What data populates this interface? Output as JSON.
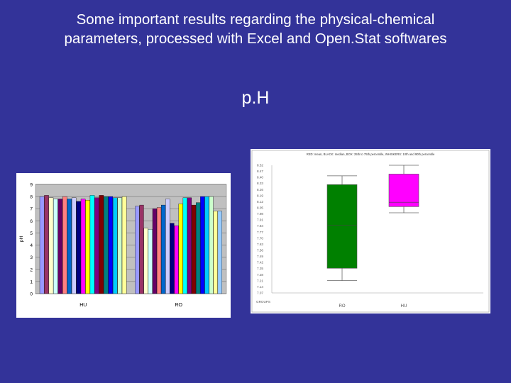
{
  "slide": {
    "title_line1": "Some important results regarding the physical-chemical",
    "title_line2": "parameters, processed with Excel and Open.Stat softwares",
    "subtitle": "p.H"
  },
  "chart_data": [
    {
      "type": "bar",
      "title": "",
      "ylabel": "pH",
      "ylim": [
        0,
        9
      ],
      "yticks": [
        0,
        1,
        2,
        3,
        4,
        5,
        6,
        7,
        8,
        9
      ],
      "categories": [
        "HU",
        "RO"
      ],
      "plot_background": "#c0c0c0",
      "series_colors": [
        "#9999ff",
        "#993366",
        "#ffffcc",
        "#ccffff",
        "#660066",
        "#ff8080",
        "#0066cc",
        "#ccccff",
        "#000080",
        "#ff00ff",
        "#ffff00",
        "#00ffff",
        "#800080",
        "#800000",
        "#008080",
        "#0000ff",
        "#00ccff",
        "#ccffcc",
        "#ffff99",
        "#99ccff",
        "#ff99cc",
        "#cc99ff",
        "#ffcc99",
        "#3366ff",
        "#33cccc"
      ],
      "groups": [
        {
          "name": "HU",
          "values": [
            8.0,
            8.1,
            7.9,
            7.8,
            7.8,
            8.0,
            7.8,
            7.9,
            7.6,
            7.8,
            7.7,
            8.1,
            7.9,
            8.1,
            8.0,
            8.0,
            7.9,
            7.9,
            8.0
          ]
        },
        {
          "name": "RO",
          "values": [
            7.2,
            7.3,
            5.4,
            5.3,
            7.0,
            7.1,
            7.3,
            7.8,
            5.8,
            5.6,
            7.4,
            7.9,
            7.9,
            7.3,
            7.5,
            8.0,
            8.0,
            8.0,
            6.8,
            6.8
          ]
        }
      ]
    },
    {
      "type": "box",
      "title": "RED: mean, BLACK: median, BOX: 25th to 75th percentile, WHISKERS: 10th and 90th percentile",
      "xlabel": "GROUPS",
      "yticks": [
        "8.52",
        "8.47",
        "8.40",
        "8.33",
        "8.26",
        "8.19",
        "8.12",
        "8.05",
        "7.98",
        "7.91",
        "7.84",
        "7.77",
        "7.70",
        "7.63",
        "7.56",
        "7.49",
        "7.42",
        "7.35",
        "7.28",
        "7.21",
        "7.14",
        "7.07"
      ],
      "ylim": [
        7.07,
        8.52
      ],
      "categories": [
        "RO",
        "HU"
      ],
      "boxes": [
        {
          "name": "RO",
          "color": "#008000",
          "whisker_high": 8.4,
          "q3": 8.3,
          "median": 7.84,
          "q1": 7.35,
          "whisker_low": 7.21
        },
        {
          "name": "HU",
          "color": "#ff00ff",
          "whisker_high": 8.52,
          "q3": 8.42,
          "median": 8.1,
          "q1": 8.05,
          "whisker_low": 7.98
        }
      ]
    }
  ]
}
